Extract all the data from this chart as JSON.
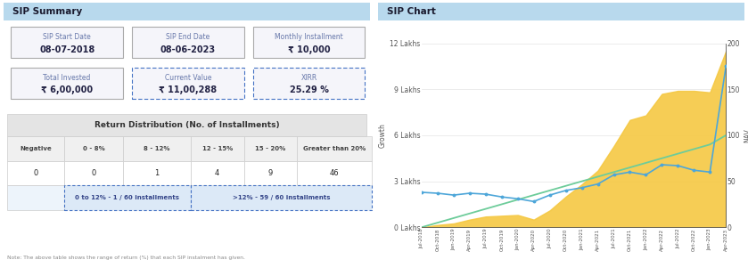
{
  "left_title": "SIP Summary",
  "right_title": "SIP Chart",
  "header_bg": "#b8d9ed",
  "header_text_color": "#1a1a2e",
  "sip_start_date": "08-07-2018",
  "sip_end_date": "08-06-2023",
  "monthly_installment": "₹ 10,000",
  "total_invested": "₹ 6,00,000",
  "current_value": "₹ 11,00,288",
  "xirr": "25.29 %",
  "table_title": "Return Distribution (No. of Installments)",
  "table_headers": [
    "Negative",
    "0 - 8%",
    "8 - 12%",
    "12 - 15%",
    "15 - 20%",
    "Greater than 20%"
  ],
  "table_values": [
    "0",
    "0",
    "1",
    "4",
    "9",
    "46"
  ],
  "summary_row1": "0 to 12% - 1 / 60 installments",
  "summary_row2": ">12% - 59 / 60 installments",
  "note_text": "Note: The above table shows the range of return (%) that each SIP instalment has given.",
  "x_labels": [
    "Jul-2018",
    "Oct-2018",
    "Jan-2019",
    "Apr-2019",
    "Jul-2019",
    "Oct-2019",
    "Jan-2020",
    "Apr-2020",
    "Jul-2020",
    "Oct-2020",
    "Jan-2021",
    "Apr-2021",
    "Jul-2021",
    "Oct-2021",
    "Jan-2022",
    "Apr-2022",
    "Jul-2022",
    "Oct-2022",
    "Jan-2023",
    "Apr-2023"
  ],
  "sip_growth": [
    0,
    15000,
    25000,
    50000,
    70000,
    75000,
    80000,
    50000,
    110000,
    200000,
    280000,
    370000,
    530000,
    700000,
    730000,
    870000,
    890000,
    890000,
    880000,
    1150000
  ],
  "nav": [
    38,
    37,
    35,
    37,
    36,
    33,
    31,
    28,
    35,
    40,
    43,
    47,
    57,
    60,
    57,
    68,
    67,
    62,
    60,
    175
  ],
  "invested_nav": [
    0,
    5,
    10,
    15,
    20,
    25,
    30,
    35,
    40,
    45,
    50,
    55,
    60,
    65,
    70,
    75,
    80,
    85,
    90,
    100
  ],
  "growth_ylim": [
    0,
    1200000
  ],
  "nav_ylim": [
    0,
    200
  ],
  "growth_yticks": [
    0,
    300000,
    600000,
    900000,
    1200000
  ],
  "growth_ytick_labels": [
    "0 Lakhs",
    "3 Lakhs",
    "6 Lakhs",
    "9 Lakhs",
    "12 Lakhs"
  ],
  "nav_yticks": [
    0,
    50,
    100,
    150,
    200
  ],
  "sip_color": "#f5c842",
  "nav_color": "#4da6d9",
  "invested_color": "#6dcc9a",
  "bg_color": "#ffffff",
  "box_border_solid": "#aaaaaa",
  "box_border_dashed": "#4472c4",
  "label_color": "#6677aa",
  "value_color": "#222244",
  "table_header_bg": "#e4e4e4",
  "table_summary_bg": "#dce9f7",
  "grid_color": "#dddddd"
}
